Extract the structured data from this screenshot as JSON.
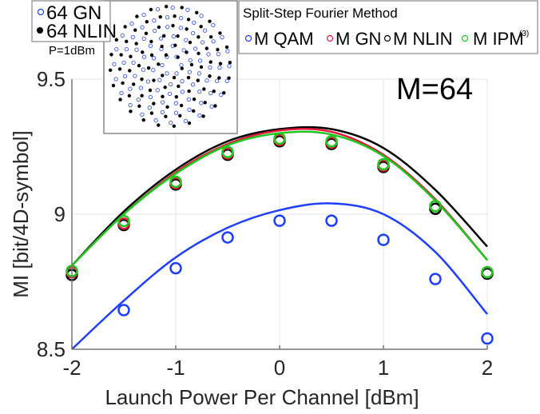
{
  "chart_data": {
    "type": "line",
    "title": "",
    "annotation": "M=64",
    "xlabel": "Launch Power Per Channel [dBm]",
    "ylabel": "MI [bit/4D-symbol]",
    "xlim": [
      -2,
      2
    ],
    "ylim": [
      8.5,
      9.5
    ],
    "x_ticks": [
      "-2",
      "-1",
      "0",
      "1",
      "2"
    ],
    "y_ticks": [
      "8.5",
      "9",
      "9.5"
    ],
    "grid": true,
    "x": [
      -2,
      -1.5,
      -1,
      -0.5,
      0,
      0.5,
      1,
      1.5,
      2
    ],
    "series": [
      {
        "name": "M QAM (markers, SSFM)",
        "kind": "markers",
        "color": "#1f3fff",
        "values": [
          null,
          8.645,
          8.8,
          8.914,
          8.976,
          8.976,
          8.905,
          8.76,
          8.54
        ]
      },
      {
        "name": "M GN (markers, SSFM)",
        "kind": "markers",
        "color": "#e0183c",
        "values": [
          8.785,
          8.965,
          9.115,
          9.225,
          9.275,
          9.265,
          9.18,
          9.03,
          8.785
        ]
      },
      {
        "name": "M NLIN (markers, SSFM)",
        "kind": "markers",
        "color": "#000000",
        "values": [
          8.775,
          8.96,
          9.11,
          9.22,
          9.27,
          9.26,
          9.175,
          9.02,
          8.78
        ]
      },
      {
        "name": "M IPM(3) (markers, SSFM)",
        "kind": "markers",
        "color": "#1ec81e",
        "values": [
          8.79,
          8.975,
          9.12,
          9.23,
          9.28,
          9.27,
          9.185,
          9.03,
          8.785
        ]
      },
      {
        "name": "64 QAM (line)",
        "kind": "line",
        "color": "#1f3fff",
        "values": [
          8.5,
          8.68,
          8.84,
          8.95,
          9.015,
          9.04,
          9.0,
          8.86,
          8.63
        ]
      },
      {
        "name": "64 GN (line)",
        "kind": "line",
        "color": "#e0183c",
        "values": [
          8.81,
          9.0,
          9.155,
          9.26,
          9.31,
          9.305,
          9.22,
          9.055,
          8.83
        ]
      },
      {
        "name": "64 NLIN (line)",
        "kind": "line",
        "color": "#000000",
        "values": [
          8.81,
          9.01,
          9.165,
          9.27,
          9.315,
          9.315,
          9.245,
          9.09,
          8.88
        ]
      },
      {
        "name": "64 IPM(3) (line)",
        "kind": "line",
        "color": "#1ec81e",
        "values": [
          8.81,
          9.0,
          9.15,
          9.255,
          9.3,
          9.295,
          9.215,
          9.05,
          8.83
        ]
      }
    ],
    "legends": [
      {
        "position": "top-left",
        "entries": [
          "64 GN",
          "64 NLIN"
        ]
      },
      {
        "position": "top-right",
        "title": "Split-Step Fourier Method",
        "entries": [
          "M QAM",
          "M GN",
          "M NLIN",
          "M IPM(3)"
        ]
      }
    ],
    "inset": {
      "type": "scatter",
      "label": "P=1dBm",
      "series": [
        "64 GN",
        "64 NLIN"
      ]
    }
  },
  "labels": {
    "xlabel": "Launch Power Per Channel [dBm]",
    "ylabel": "MI [bit/4D-symbol]",
    "annotation": "M=64",
    "inset_label": "P=1dBm",
    "legend1": [
      "64 GN",
      "64 NLIN"
    ],
    "legend2_title": "Split-Step Fourier Method",
    "legend2": [
      "M QAM",
      "M GN",
      "M NLIN",
      "M IPM"
    ],
    "legend2_sup": "(3)",
    "x_ticks": [
      "-2",
      "-1",
      "0",
      "1",
      "2"
    ],
    "y_ticks": [
      "8.5",
      "9",
      "9.5"
    ]
  },
  "colors": {
    "qam": "#1f3fff",
    "gn": "#e0183c",
    "nlin": "#000000",
    "ipm": "#1ec81e",
    "axis": "#777777",
    "grid": "#e6e6e6"
  }
}
